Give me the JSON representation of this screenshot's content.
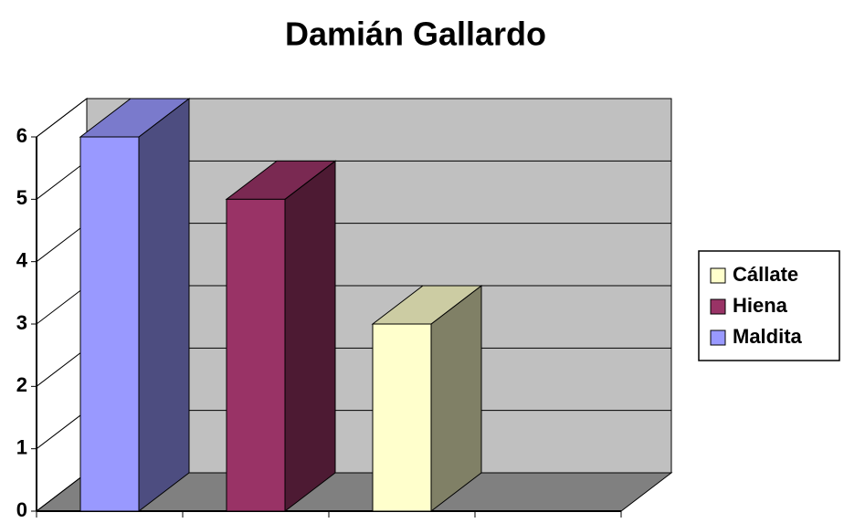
{
  "chart_data": {
    "type": "bar3d",
    "title": "Damián Gallardo",
    "categories": [
      null,
      null,
      null,
      null
    ],
    "series": [
      {
        "name": "Maldita",
        "color": "#9999ff",
        "values": [
          6,
          null,
          null,
          null
        ]
      },
      {
        "name": "Hiena",
        "color": "#993366",
        "values": [
          null,
          5,
          null,
          null
        ]
      },
      {
        "name": "Cállate",
        "color": "#ffffcc",
        "values": [
          null,
          null,
          3,
          null
        ]
      }
    ],
    "ylim": [
      0,
      6
    ],
    "yticks": [
      0,
      1,
      2,
      3,
      4,
      5,
      6
    ],
    "grid": true,
    "legend": "right"
  }
}
